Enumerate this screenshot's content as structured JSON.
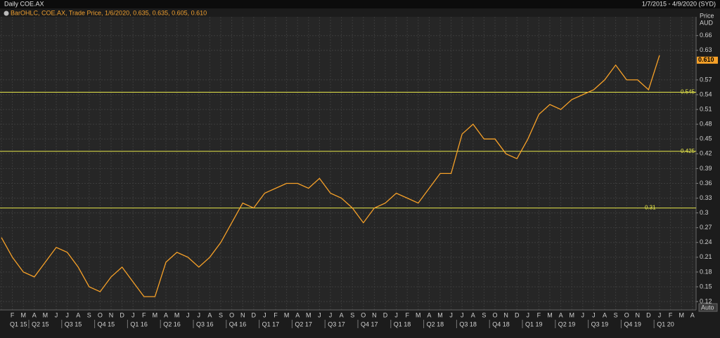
{
  "chart_data": {
    "type": "line",
    "title": "Daily COE.AX",
    "date_range": "1/7/2015 - 4/9/2020 (SYD)",
    "legend_text": "BarOHLC, COE.AX, Trade Price, 1/6/2020, 0.635, 0.635, 0.605, 0.610",
    "y_axis_title": "Price",
    "y_axis_unit": "AUD",
    "scale_button": "Auto",
    "categories": [
      null,
      "F",
      "M",
      "A",
      "M",
      "J",
      "J",
      "A",
      "S",
      "O",
      "N",
      "D",
      "J",
      "F",
      "M",
      "A",
      "M",
      "J",
      "J",
      "A",
      "S",
      "O",
      "N",
      "D",
      "J",
      "F",
      "M",
      "A",
      "M",
      "J",
      "J",
      "A",
      "S",
      "O",
      "N",
      "D",
      "J",
      "F",
      "M",
      "A",
      "M",
      "J",
      "J",
      "A",
      "S",
      "O",
      "N",
      "D",
      "J",
      "F",
      "M",
      "A",
      "M",
      "J",
      "J",
      "A",
      "S",
      "O",
      "N",
      "D",
      "J",
      "F",
      "M",
      "A"
    ],
    "quarters": [
      "Q1 15",
      "Q2 15",
      "Q3 15",
      "Q4 15",
      "Q1 16",
      "Q2 16",
      "Q3 16",
      "Q4 16",
      "Q1 17",
      "Q2 17",
      "Q3 17",
      "Q4 17",
      "Q1 18",
      "Q2 18",
      "Q3 18",
      "Q4 18",
      "Q1 19",
      "Q2 19",
      "Q3 19",
      "Q4 19",
      "Q1 20"
    ],
    "series": [
      {
        "name": "COE.AX",
        "color": "#f7a128",
        "values": [
          0.25,
          0.21,
          0.18,
          0.17,
          0.2,
          0.23,
          0.22,
          0.19,
          0.15,
          0.14,
          0.17,
          0.19,
          0.16,
          0.13,
          0.13,
          0.2,
          0.22,
          0.21,
          0.19,
          0.21,
          0.24,
          0.28,
          0.32,
          0.31,
          0.34,
          0.35,
          0.36,
          0.36,
          0.35,
          0.37,
          0.34,
          0.33,
          0.31,
          0.28,
          0.31,
          0.32,
          0.34,
          0.33,
          0.32,
          0.35,
          0.38,
          0.38,
          0.46,
          0.48,
          0.45,
          0.45,
          0.42,
          0.41,
          0.45,
          0.5,
          0.52,
          0.51,
          0.53,
          0.54,
          0.55,
          0.57,
          0.6,
          0.57,
          0.57,
          0.55,
          0.62,
          null,
          null,
          null
        ]
      }
    ],
    "last_price": {
      "value": 0.61,
      "label": "0.610"
    },
    "reference_lines": [
      0.545,
      0.425,
      0.31
    ],
    "ylim": [
      0.103,
      0.698
    ],
    "yticks": [
      0.12,
      0.15,
      0.18,
      0.21,
      0.24,
      0.27,
      0.3,
      0.33,
      0.36,
      0.39,
      0.42,
      0.45,
      0.48,
      0.51,
      0.54,
      0.57,
      0.63,
      0.66
    ],
    "grid": true
  }
}
